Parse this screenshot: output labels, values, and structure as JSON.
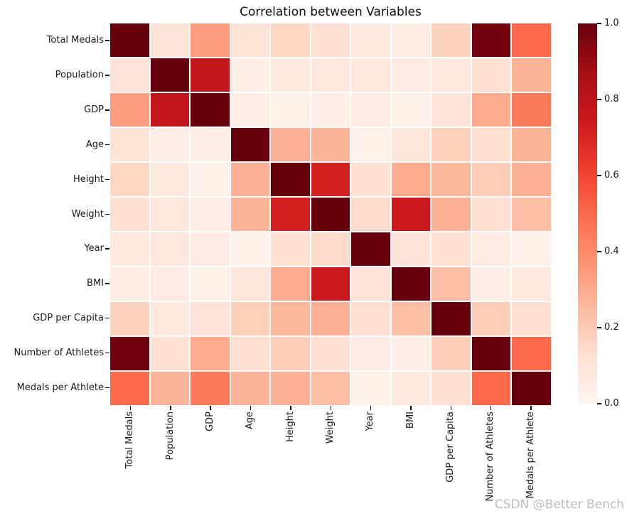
{
  "chart_data": {
    "type": "heatmap",
    "title": "Correlation between Variables",
    "variables": [
      "Total Medals",
      "Population",
      "GDP",
      "Age",
      "Height",
      "Weight",
      "Year",
      "BMI",
      "GDP per Capita",
      "Number of Athletes",
      "Medals per Athlete"
    ],
    "matrix": [
      [
        1.0,
        0.1,
        0.34,
        0.11,
        0.16,
        0.12,
        0.07,
        0.05,
        0.17,
        0.98,
        0.5
      ],
      [
        0.1,
        1.0,
        0.78,
        0.04,
        0.07,
        0.08,
        0.08,
        0.06,
        0.07,
        0.12,
        0.27
      ],
      [
        0.34,
        0.78,
        1.0,
        0.04,
        0.03,
        0.04,
        0.06,
        0.03,
        0.1,
        0.3,
        0.45
      ],
      [
        0.11,
        0.04,
        0.04,
        1.0,
        0.28,
        0.27,
        0.02,
        0.09,
        0.18,
        0.13,
        0.27
      ],
      [
        0.16,
        0.07,
        0.03,
        0.28,
        1.0,
        0.72,
        0.12,
        0.3,
        0.26,
        0.19,
        0.28
      ],
      [
        0.12,
        0.08,
        0.04,
        0.27,
        0.72,
        1.0,
        0.14,
        0.75,
        0.28,
        0.12,
        0.24
      ],
      [
        0.07,
        0.08,
        0.06,
        0.02,
        0.12,
        0.14,
        1.0,
        0.1,
        0.12,
        0.06,
        0.03
      ],
      [
        0.05,
        0.06,
        0.03,
        0.09,
        0.3,
        0.75,
        0.1,
        1.0,
        0.24,
        0.04,
        0.07
      ],
      [
        0.17,
        0.07,
        0.1,
        0.18,
        0.26,
        0.28,
        0.12,
        0.24,
        1.0,
        0.19,
        0.12
      ],
      [
        0.98,
        0.12,
        0.3,
        0.13,
        0.19,
        0.12,
        0.06,
        0.04,
        0.19,
        1.0,
        0.5
      ],
      [
        0.5,
        0.27,
        0.45,
        0.27,
        0.28,
        0.24,
        0.03,
        0.07,
        0.12,
        0.5,
        1.0
      ]
    ],
    "vmin": 0.0,
    "vmax": 1.0,
    "colormap": {
      "name": "Reds",
      "stops": [
        [
          0.0,
          "#fff5f0"
        ],
        [
          0.125,
          "#fee0d2"
        ],
        [
          0.25,
          "#fcbba1"
        ],
        [
          0.375,
          "#fc9272"
        ],
        [
          0.5,
          "#fb6a4a"
        ],
        [
          0.625,
          "#ef3b2c"
        ],
        [
          0.75,
          "#cb181d"
        ],
        [
          0.875,
          "#a50f15"
        ],
        [
          1.0,
          "#67000d"
        ]
      ]
    },
    "grid_line_color": "#ffffff",
    "colorbar": {
      "position": "right",
      "ticks": [
        {
          "label": "1.0",
          "value": 1.0
        },
        {
          "label": "0.8",
          "value": 0.8
        },
        {
          "label": "0.6",
          "value": 0.6
        },
        {
          "label": "0.4",
          "value": 0.4
        },
        {
          "label": "0.2",
          "value": 0.2
        },
        {
          "label": "0.0",
          "value": 0.0
        }
      ]
    }
  },
  "watermark": {
    "text": "CSDN @Better Bench",
    "color": "#bdbdbd"
  }
}
